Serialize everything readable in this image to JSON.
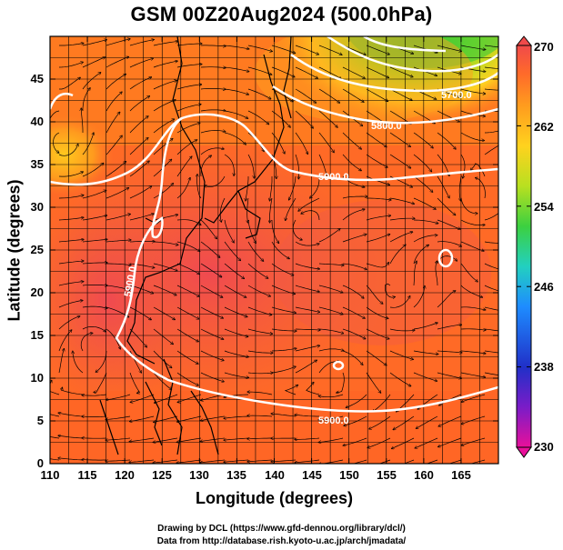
{
  "title": "GSM 00Z20Aug2024 (500.0hPa)",
  "axes": {
    "xlabel": "Longitude (degrees)",
    "ylabel": "Latitude  (degrees)",
    "xticks": [
      "110",
      "115",
      "120",
      "125",
      "130",
      "135",
      "140",
      "145",
      "150",
      "155",
      "160",
      "165"
    ],
    "yticks": [
      "0",
      "5",
      "10",
      "15",
      "20",
      "25",
      "30",
      "35",
      "40",
      "45"
    ],
    "xlim": [
      110,
      170
    ],
    "ylim": [
      0,
      50
    ]
  },
  "colorbar": {
    "ticks": [
      "230",
      "238",
      "246",
      "254",
      "262",
      "270"
    ],
    "range": [
      230,
      270
    ],
    "colors": [
      "#e8109a",
      "#7a1cc8",
      "#2030c8",
      "#1e8cff",
      "#22d0c0",
      "#3cd040",
      "#b8e020",
      "#ffd21e",
      "#ff9c1e",
      "#ff6a2a",
      "#f04a4a"
    ]
  },
  "contours": {
    "color": "#ffffff",
    "labels": [
      "5900.0",
      "5900.0",
      "5900.0",
      "5800.0",
      "5700.0"
    ]
  },
  "credits": {
    "line1": "Drawing by DCL (https://www.gfd-dennou.org/library/dcl/)",
    "line2": "Data from http://database.rish.kyoto-u.ac.jp/arch/jmadata/"
  }
}
